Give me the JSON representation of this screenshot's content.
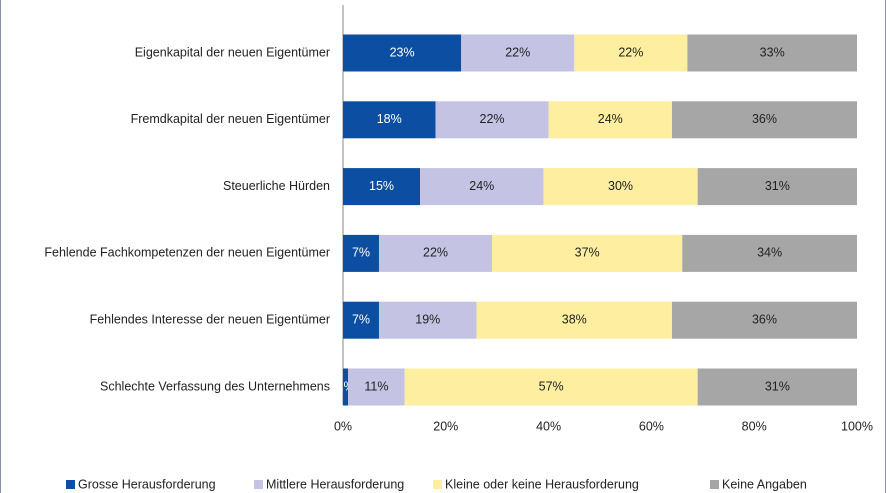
{
  "chart_data": {
    "type": "stacked_bar_horizontal",
    "categories": [
      "Eigenkapital der neuen Eigentümer",
      "Fremdkapital der neuen Eigentümer",
      "Steuerliche Hürden",
      "Fehlende Fachkompetenzen der neuen Eigentümer",
      "Fehlendes Interesse der neuen Eigentümer",
      "Schlechte Verfassung des Unternehmens"
    ],
    "series": [
      {
        "name": "Grosse Herausforderung",
        "color": "#0b4ea2",
        "values": [
          23,
          18,
          15,
          7,
          7,
          1
        ],
        "value_labels": [
          "23%",
          "18%",
          "15%",
          "7%",
          "7%",
          "1%"
        ]
      },
      {
        "name": "Mittlere Herausforderung",
        "color": "#c5c3e3",
        "values": [
          22,
          22,
          24,
          22,
          19,
          11
        ],
        "value_labels": [
          "22%",
          "22%",
          "24%",
          "22%",
          "19%",
          "11%"
        ]
      },
      {
        "name": "Kleine oder keine Herausforderung",
        "color": "#fdeea0",
        "values": [
          22,
          24,
          30,
          37,
          38,
          57
        ],
        "value_labels": [
          "22%",
          "24%",
          "30%",
          "37%",
          "38%",
          "57%"
        ]
      },
      {
        "name": "Keine Angaben",
        "color": "#a6a6a6",
        "values": [
          33,
          36,
          31,
          34,
          36,
          31
        ],
        "value_labels": [
          "33%",
          "36%",
          "31%",
          "34%",
          "36%",
          "31%"
        ]
      }
    ],
    "xlim": [
      0,
      100
    ],
    "xticks": [
      {
        "value": 0,
        "label": "0%"
      },
      {
        "value": 20,
        "label": "20%"
      },
      {
        "value": 40,
        "label": "40%"
      },
      {
        "value": 60,
        "label": "60%"
      },
      {
        "value": 80,
        "label": "80%"
      },
      {
        "value": 100,
        "label": "100%"
      }
    ],
    "grid": false,
    "legend": "bottom"
  }
}
